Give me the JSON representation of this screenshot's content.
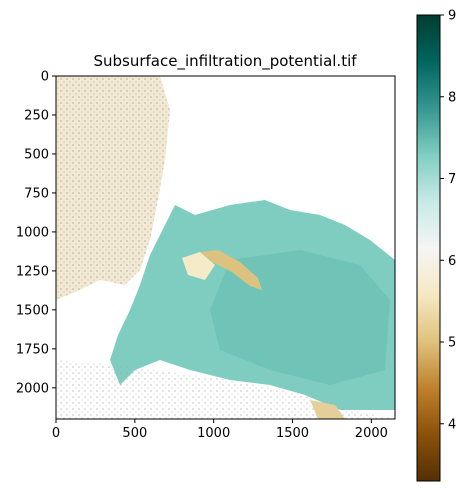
{
  "chart_data": {
    "type": "heatmap",
    "title": "Subsurface_infiltration_potential.tif",
    "xlabel": "",
    "ylabel": "",
    "x_range": [
      0,
      2150
    ],
    "y_range": [
      0,
      2200
    ],
    "x_ticks": [
      "0",
      "500",
      "1000",
      "1500",
      "2000"
    ],
    "y_ticks": [
      "0",
      "250",
      "500",
      "750",
      "1000",
      "1250",
      "1500",
      "1750",
      "2000"
    ],
    "colorbar": {
      "colormap": "BrBG",
      "range": [
        3.3,
        9
      ],
      "ticks": [
        "4",
        "5",
        "6",
        "7",
        "8",
        "9"
      ]
    },
    "overlay_color": "#a9a9a9",
    "grid": false
  }
}
